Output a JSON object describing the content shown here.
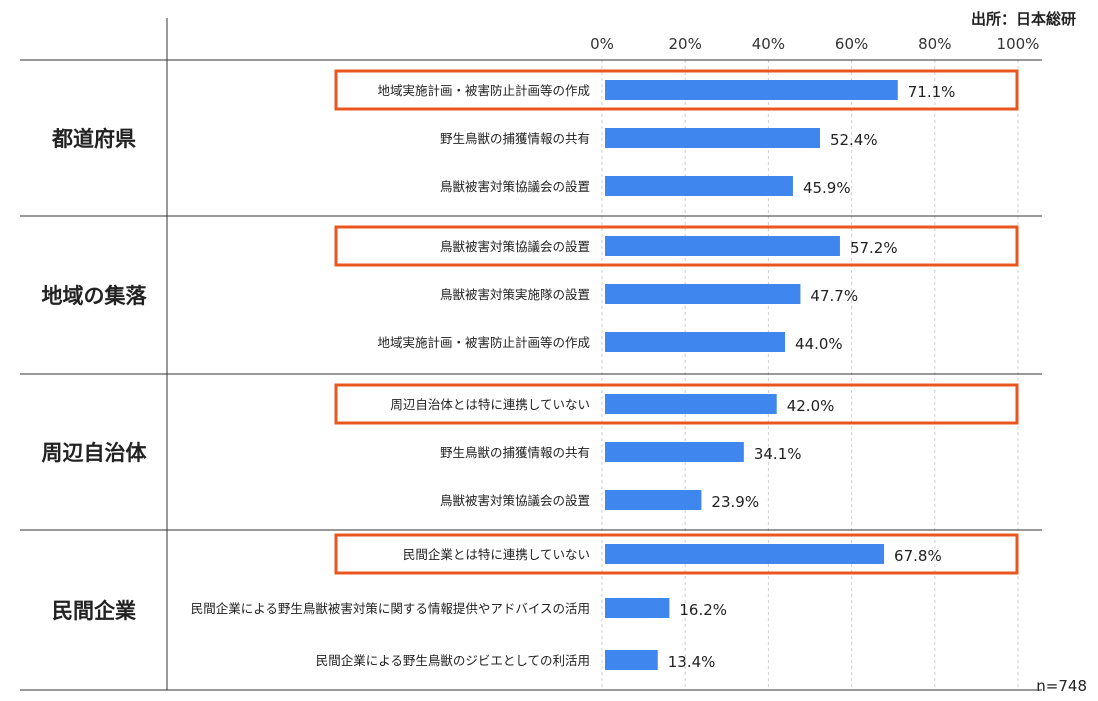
{
  "source": "出所：日本総研",
  "sample_size": "n=748",
  "colors": {
    "bar": "#3f86ee",
    "highlight": "#e8571f",
    "grid": "#cfcfcf",
    "rule": "#333333"
  },
  "chart_data": {
    "type": "bar",
    "orientation": "horizontal",
    "xlim": [
      0,
      100
    ],
    "xticks": [
      "0%",
      "20%",
      "40%",
      "60%",
      "80%",
      "100%"
    ],
    "grid": true,
    "groups": [
      {
        "name": "都道府県",
        "items": [
          {
            "label": "地域実施計画・被害防止計画等の作成",
            "value": 71.1,
            "value_label": "71.1%",
            "highlight": true
          },
          {
            "label": "野生鳥獣の捕獲情報の共有",
            "value": 52.4,
            "value_label": "52.4%",
            "highlight": false
          },
          {
            "label": "鳥獣被害対策協議会の設置",
            "value": 45.9,
            "value_label": "45.9%",
            "highlight": false
          }
        ]
      },
      {
        "name": "地域の集落",
        "items": [
          {
            "label": "鳥獣被害対策協議会の設置",
            "value": 57.2,
            "value_label": "57.2%",
            "highlight": true
          },
          {
            "label": "鳥獣被害対策実施隊の設置",
            "value": 47.7,
            "value_label": "47.7%",
            "highlight": false
          },
          {
            "label": "地域実施計画・被害防止計画等の作成",
            "value": 44.0,
            "value_label": "44.0%",
            "highlight": false
          }
        ]
      },
      {
        "name": "周辺自治体",
        "items": [
          {
            "label": "周辺自治体とは特に連携していない",
            "value": 42.0,
            "value_label": "42.0%",
            "highlight": true
          },
          {
            "label": "野生鳥獣の捕獲情報の共有",
            "value": 34.1,
            "value_label": "34.1%",
            "highlight": false
          },
          {
            "label": "鳥獣被害対策協議会の設置",
            "value": 23.9,
            "value_label": "23.9%",
            "highlight": false
          }
        ]
      },
      {
        "name": "民間企業",
        "items": [
          {
            "label": "民間企業とは特に連携していない",
            "value": 67.8,
            "value_label": "67.8%",
            "highlight": true
          },
          {
            "label": "民間企業による野生鳥獣被害対策に関する情報提供やアドバイスの活用",
            "value": 16.2,
            "value_label": "16.2%",
            "highlight": false
          },
          {
            "label": "民間企業による野生鳥獣のジビエとしての利活用",
            "value": 13.4,
            "value_label": "13.4%",
            "highlight": false
          }
        ]
      }
    ]
  }
}
